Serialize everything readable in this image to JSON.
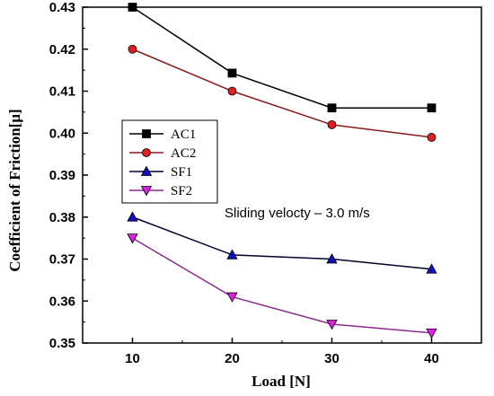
{
  "chart_data": {
    "type": "line",
    "title": "",
    "xlabel": "Load [N]",
    "ylabel": "Coefficient of Friction[μ]",
    "x": [
      10,
      20,
      30,
      40
    ],
    "xticks": [
      "10",
      "20",
      "30",
      "40"
    ],
    "xlim": [
      5,
      45
    ],
    "ylim": [
      0.35,
      0.43
    ],
    "yticks": [
      "0.35",
      "0.36",
      "0.37",
      "0.38",
      "0.39",
      "0.40",
      "0.41",
      "0.42",
      "0.43"
    ],
    "grid": false,
    "legend": "left",
    "series": [
      {
        "name": "AC1",
        "values": [
          0.43,
          0.4143,
          0.406,
          0.406
        ],
        "color": "#000000",
        "marker": "square"
      },
      {
        "name": "AC2",
        "values": [
          0.42,
          0.41,
          0.402,
          0.399
        ],
        "color": "#8b1a1a",
        "marker": "circle"
      },
      {
        "name": "SF1",
        "values": [
          0.38,
          0.371,
          0.37,
          0.3676
        ],
        "color": "#000033",
        "marker": "triangle-up"
      },
      {
        "name": "SF2",
        "values": [
          0.375,
          0.361,
          0.3545,
          0.3524
        ],
        "color": "#8b2a8b",
        "marker": "triangle-down"
      }
    ],
    "annotation": "Sliding velocty  –  3.0 m/s"
  },
  "colors": {
    "AC1_marker": "#000000",
    "AC2_marker": "#e02020",
    "SF1_marker": "#1010c0",
    "SF2_marker": "#e020e0"
  }
}
